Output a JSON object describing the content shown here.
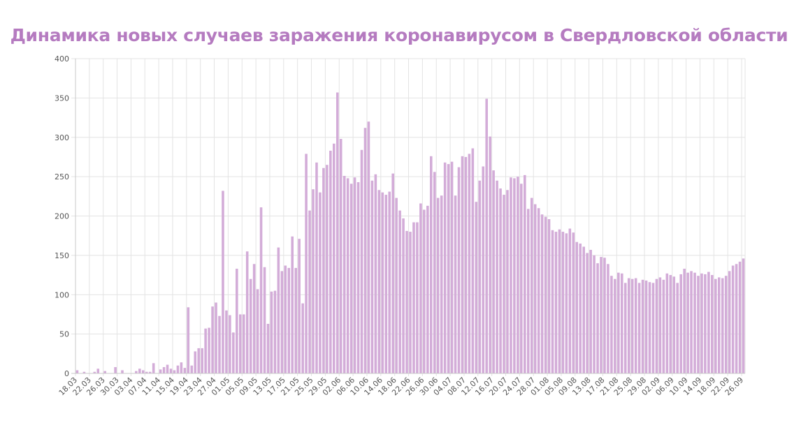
{
  "chart_data": {
    "type": "bar",
    "title": "Динамика новых случаев заражения коронавирусом в Свердловской области",
    "xlabel": "",
    "ylabel": "",
    "ylim": [
      0,
      400
    ],
    "yticks": [
      0,
      50,
      100,
      150,
      200,
      250,
      300,
      350,
      400
    ],
    "grid": true,
    "legend": "none",
    "bar_color": "#d3acd8",
    "title_color": "#b57bc0",
    "start_date": "18.03",
    "xtick_labels": [
      "18.03",
      "22.03",
      "26.03",
      "30.03",
      "03.04",
      "07.04",
      "11.04",
      "15.04",
      "19.04",
      "23.04",
      "27.04",
      "01.05",
      "05.05",
      "09.05",
      "13.05",
      "17.05",
      "21.05",
      "25.05",
      "29.05",
      "02.06",
      "06.06",
      "10.06",
      "14.06",
      "18.06",
      "22.06",
      "26.06",
      "30.06",
      "04.07",
      "08.07",
      "12.07",
      "16.07",
      "20.07",
      "24.07",
      "28.07",
      "01.08",
      "05.08",
      "09.08",
      "13.08",
      "17.08",
      "21.08",
      "25.08",
      "29.08",
      "02.09",
      "06.09",
      "10.09",
      "14.09",
      "18.09",
      "22.09",
      "26.09"
    ],
    "values": [
      4,
      0,
      2,
      0,
      0,
      2,
      6,
      0,
      3,
      0,
      0,
      8,
      0,
      4,
      0,
      0,
      0,
      3,
      6,
      4,
      2,
      2,
      13,
      0,
      5,
      8,
      11,
      6,
      4,
      10,
      14,
      7,
      84,
      10,
      28,
      32,
      32,
      57,
      58,
      85,
      90,
      73,
      232,
      80,
      74,
      52,
      133,
      75,
      75,
      155,
      120,
      139,
      107,
      211,
      135,
      63,
      104,
      105,
      160,
      130,
      137,
      134,
      174,
      134,
      171,
      89,
      279,
      207,
      234,
      268,
      230,
      261,
      265,
      283,
      292,
      357,
      298,
      251,
      248,
      241,
      249,
      243,
      284,
      312,
      320,
      245,
      253,
      233,
      230,
      227,
      231,
      254,
      223,
      207,
      197,
      181,
      180,
      192,
      192,
      216,
      208,
      213,
      276,
      256,
      223,
      226,
      268,
      266,
      269,
      226,
      262,
      276,
      275,
      279,
      286,
      218,
      245,
      263,
      349,
      301,
      258,
      245,
      235,
      227,
      233,
      249,
      248,
      250,
      241,
      252,
      209,
      223,
      215,
      210,
      202,
      199,
      196,
      182,
      180,
      183,
      180,
      178,
      184,
      179,
      167,
      165,
      161,
      153,
      157,
      150,
      140,
      148,
      147,
      139,
      124,
      120,
      128,
      127,
      115,
      121,
      120,
      121,
      115,
      119,
      118,
      116,
      115,
      120,
      122,
      119,
      127,
      125,
      123,
      115,
      126,
      133,
      128,
      130,
      128,
      124,
      127,
      126,
      129,
      125,
      120,
      122,
      121,
      124,
      130,
      137,
      139,
      142,
      146
    ]
  }
}
